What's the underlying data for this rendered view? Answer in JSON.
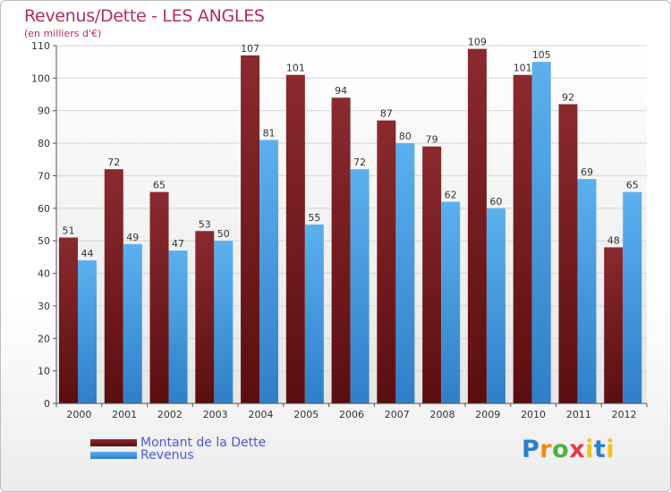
{
  "title": "Revenus/Dette - LES ANGLES",
  "subtitle": "(en milliers d'€)",
  "logo": "Proxiti",
  "colors": {
    "dette": "#7a1e22",
    "revenus": "#4aa0e2",
    "title": "#b3304f",
    "legend_text": "#4a5bd4"
  },
  "chart_data": {
    "type": "bar",
    "title": "Revenus/Dette - LES ANGLES",
    "subtitle": "(en milliers d'€)",
    "categories": [
      "2000",
      "2001",
      "2002",
      "2003",
      "2004",
      "2005",
      "2006",
      "2007",
      "2008",
      "2009",
      "2010",
      "2011",
      "2012"
    ],
    "series": [
      {
        "name": "Montant de la Dette",
        "values": [
          51,
          72,
          65,
          53,
          107,
          101,
          94,
          87,
          79,
          109,
          101,
          92,
          48
        ]
      },
      {
        "name": "Revenus",
        "values": [
          44,
          49,
          47,
          50,
          81,
          55,
          72,
          80,
          62,
          60,
          105,
          69,
          65
        ]
      }
    ],
    "yticks": [
      "0",
      "10",
      "20",
      "30",
      "40",
      "50",
      "60",
      "70",
      "80",
      "90",
      "100",
      "110"
    ],
    "ylim": [
      0,
      110
    ],
    "grid": true,
    "legend_position": "bottom-left"
  }
}
